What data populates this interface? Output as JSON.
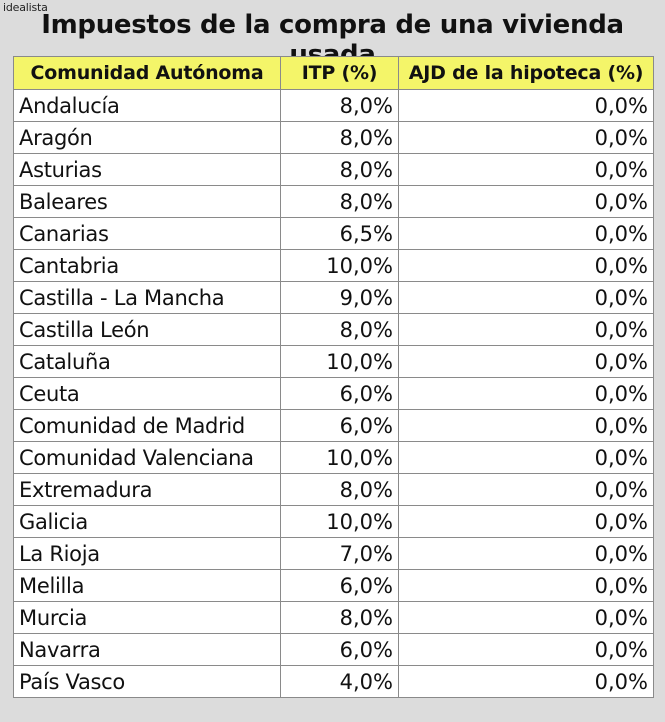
{
  "brand": "idealista",
  "title": "Impuestos de la compra de una vivienda usada",
  "colors": {
    "header_bg": "#f4f569",
    "page_bg": "#dcdcdc",
    "border": "#8a8a8a"
  },
  "table": {
    "headers": [
      "Comunidad Autónoma",
      "ITP (%)",
      "AJD de la hipoteca (%)"
    ],
    "rows": [
      [
        "Andalucía",
        "8,0%",
        "0,0%"
      ],
      [
        "Aragón",
        "8,0%",
        "0,0%"
      ],
      [
        "Asturias",
        "8,0%",
        "0,0%"
      ],
      [
        "Baleares",
        "8,0%",
        "0,0%"
      ],
      [
        "Canarias",
        "6,5%",
        "0,0%"
      ],
      [
        "Cantabria",
        "10,0%",
        "0,0%"
      ],
      [
        "Castilla - La Mancha",
        "9,0%",
        "0,0%"
      ],
      [
        "Castilla León",
        "8,0%",
        "0,0%"
      ],
      [
        "Cataluña",
        "10,0%",
        "0,0%"
      ],
      [
        "Ceuta",
        "6,0%",
        "0,0%"
      ],
      [
        "Comunidad de Madrid",
        "6,0%",
        "0,0%"
      ],
      [
        "Comunidad Valenciana",
        "10,0%",
        "0,0%"
      ],
      [
        "Extremadura",
        "8,0%",
        "0,0%"
      ],
      [
        "Galicia",
        "10,0%",
        "0,0%"
      ],
      [
        "La Rioja",
        "7,0%",
        "0,0%"
      ],
      [
        "Melilla",
        "6,0%",
        "0,0%"
      ],
      [
        "Murcia",
        "8,0%",
        "0,0%"
      ],
      [
        "Navarra",
        "6,0%",
        "0,0%"
      ],
      [
        "País Vasco",
        "4,0%",
        "0,0%"
      ]
    ]
  }
}
